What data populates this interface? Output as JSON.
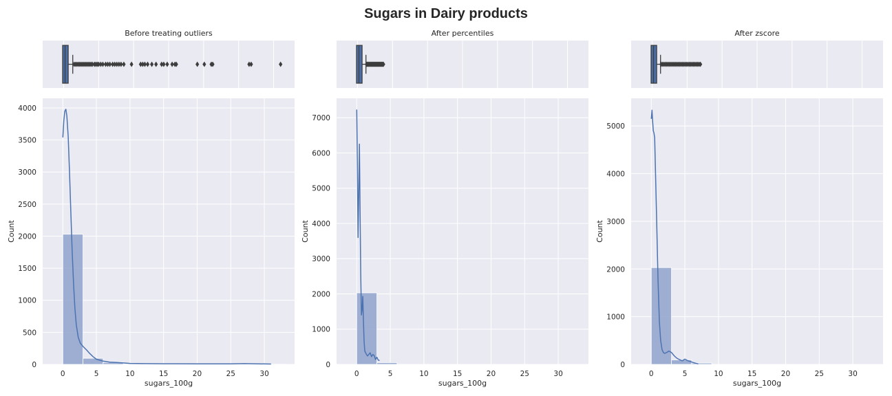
{
  "figure": {
    "title": "Sugars in Dairy products"
  },
  "style": {
    "panel_bg": "#eaeaf2",
    "bar_color": "#8fa3cc",
    "line_color": "#4c72b0",
    "box_color": "#4c6ea6",
    "outlier_color": "#3d3d3d"
  },
  "chart_data": [
    {
      "type": "box",
      "title": "Before treating outliers",
      "xlim": [
        -3,
        33
      ],
      "box": {
        "q1": 0.0,
        "median": 0.2,
        "q3": 0.5,
        "whisker_low": 0.0,
        "whisker_high": 1.3
      },
      "outliers": [
        1.5,
        1.7,
        1.9,
        2.1,
        2.3,
        2.5,
        2.7,
        2.9,
        3.1,
        3.3,
        3.5,
        3.7,
        3.9,
        4.1,
        4.4,
        4.6,
        4.8,
        5.0,
        5.3,
        5.6,
        6.0,
        6.3,
        6.6,
        7.0,
        7.3,
        7.6,
        7.9,
        8.2,
        8.6,
        9.7,
        11.0,
        11.3,
        11.6,
        12.0,
        12.6,
        13.2,
        14.0,
        14.3,
        14.8,
        15.5,
        15.9,
        16.1,
        19.1,
        20.1,
        21.1,
        21.3,
        26.5,
        26.8,
        31.0
      ]
    },
    {
      "type": "box",
      "title": "After percentiles",
      "xlim": [
        -3,
        33
      ],
      "box": {
        "q1": 0.0,
        "median": 0.2,
        "q3": 0.5,
        "whisker_low": 0.0,
        "whisker_high": 1.2
      },
      "outliers": [
        1.3,
        1.4,
        1.5,
        1.6,
        1.7,
        1.8,
        1.9,
        2.0,
        2.1,
        2.2,
        2.3,
        2.4,
        2.5,
        2.6,
        2.7,
        2.8,
        2.9,
        3.0,
        3.1,
        3.2,
        3.3,
        3.4,
        3.5,
        3.6,
        3.7
      ]
    },
    {
      "type": "box",
      "title": "After zscore",
      "xlim": [
        -3,
        33
      ],
      "box": {
        "q1": 0.0,
        "median": 0.2,
        "q3": 0.5,
        "whisker_low": 0.0,
        "whisker_high": 1.2
      },
      "outliers": [
        1.3,
        1.5,
        1.7,
        1.9,
        2.1,
        2.3,
        2.5,
        2.7,
        2.9,
        3.1,
        3.3,
        3.5,
        3.7,
        3.9,
        4.1,
        4.3,
        4.5,
        4.7,
        4.9,
        5.1,
        5.3,
        5.5,
        5.7,
        5.9,
        6.1,
        6.3,
        6.5,
        6.7,
        6.9
      ]
    },
    {
      "type": "histogram",
      "xlabel": "sugars_100g",
      "ylabel": "Count",
      "xlim": [
        -3,
        34.5
      ],
      "ylim": [
        0,
        4150
      ],
      "xticks": [
        0,
        5,
        10,
        15,
        20,
        25,
        30
      ],
      "yticks": [
        0,
        500,
        1000,
        1500,
        2000,
        2500,
        3000,
        3500,
        4000
      ],
      "bins": [
        {
          "x0": 0.0,
          "x1": 3.0,
          "count": 2030
        },
        {
          "x0": 3.0,
          "x1": 6.0,
          "count": 95
        },
        {
          "x0": 6.0,
          "x1": 9.0,
          "count": 30
        },
        {
          "x0": 9.0,
          "x1": 12.0,
          "count": 10
        },
        {
          "x0": 12.0,
          "x1": 15.0,
          "count": 8
        },
        {
          "x0": 15.0,
          "x1": 18.0,
          "count": 6
        },
        {
          "x0": 18.0,
          "x1": 21.0,
          "count": 5
        },
        {
          "x0": 21.0,
          "x1": 24.0,
          "count": 3
        },
        {
          "x0": 24.0,
          "x1": 27.0,
          "count": 3
        },
        {
          "x0": 27.0,
          "x1": 30.0,
          "count": 2
        },
        {
          "x0": 30.0,
          "x1": 33.0,
          "count": 2
        }
      ],
      "kde": {
        "x": [
          0,
          0.15,
          0.3,
          0.45,
          0.6,
          0.8,
          1.0,
          1.2,
          1.4,
          1.6,
          1.8,
          2.0,
          2.3,
          2.6,
          3.0,
          3.5,
          4.0,
          4.5,
          5.0,
          6.0,
          7.0,
          8.0,
          9.0,
          10.0,
          12.0,
          15.0,
          20.0,
          25.0,
          27.0,
          31.0
        ],
        "y": [
          3540,
          3800,
          3950,
          3980,
          3880,
          3550,
          3000,
          2350,
          1750,
          1250,
          880,
          620,
          420,
          330,
          280,
          230,
          170,
          120,
          80,
          50,
          35,
          30,
          22,
          15,
          12,
          10,
          8,
          8,
          12,
          5
        ]
      }
    },
    {
      "type": "histogram",
      "xlabel": "sugars_100g",
      "ylabel": "Count",
      "xlim": [
        -3,
        34.5
      ],
      "ylim": [
        0,
        7550
      ],
      "xticks": [
        0,
        5,
        10,
        15,
        20,
        25,
        30
      ],
      "yticks": [
        0,
        1000,
        2000,
        3000,
        4000,
        5000,
        6000,
        7000
      ],
      "bins": [
        {
          "x0": 0.0,
          "x1": 3.0,
          "count": 2030
        },
        {
          "x0": 3.0,
          "x1": 6.0,
          "count": 50
        }
      ],
      "kde": {
        "x": [
          0,
          0.1,
          0.2,
          0.3,
          0.4,
          0.5,
          0.6,
          0.7,
          0.8,
          0.9,
          1.0,
          1.1,
          1.2,
          1.4,
          1.6,
          1.8,
          2.0,
          2.2,
          2.4,
          2.6,
          2.8,
          3.0,
          3.2,
          3.4
        ],
        "y": [
          7230,
          5600,
          3600,
          4800,
          6250,
          4300,
          2600,
          1400,
          1550,
          1930,
          1250,
          650,
          380,
          300,
          240,
          280,
          330,
          220,
          280,
          250,
          140,
          200,
          120,
          110
        ]
      }
    },
    {
      "type": "histogram",
      "xlabel": "sugars_100g",
      "ylabel": "Count",
      "xlim": [
        -3,
        34.5
      ],
      "ylim": [
        0,
        5580
      ],
      "xticks": [
        0,
        5,
        10,
        15,
        20,
        25,
        30
      ],
      "yticks": [
        0,
        1000,
        2000,
        3000,
        4000,
        5000
      ],
      "bins": [
        {
          "x0": 0.0,
          "x1": 3.0,
          "count": 2030
        },
        {
          "x0": 3.0,
          "x1": 6.0,
          "count": 95
        },
        {
          "x0": 6.0,
          "x1": 9.0,
          "count": 28
        }
      ],
      "kde": {
        "x": [
          0,
          0.1,
          0.2,
          0.3,
          0.4,
          0.5,
          0.6,
          0.8,
          1.0,
          1.2,
          1.4,
          1.6,
          1.8,
          2.0,
          2.3,
          2.6,
          3.0,
          3.4,
          3.8,
          4.2,
          4.6,
          5.0,
          5.4,
          5.8,
          6.2,
          6.6,
          7.0
        ],
        "y": [
          5150,
          5330,
          5100,
          4900,
          4850,
          4750,
          4200,
          3000,
          1800,
          900,
          500,
          310,
          250,
          230,
          250,
          280,
          250,
          180,
          130,
          100,
          75,
          110,
          80,
          60,
          40,
          25,
          10
        ]
      }
    }
  ]
}
